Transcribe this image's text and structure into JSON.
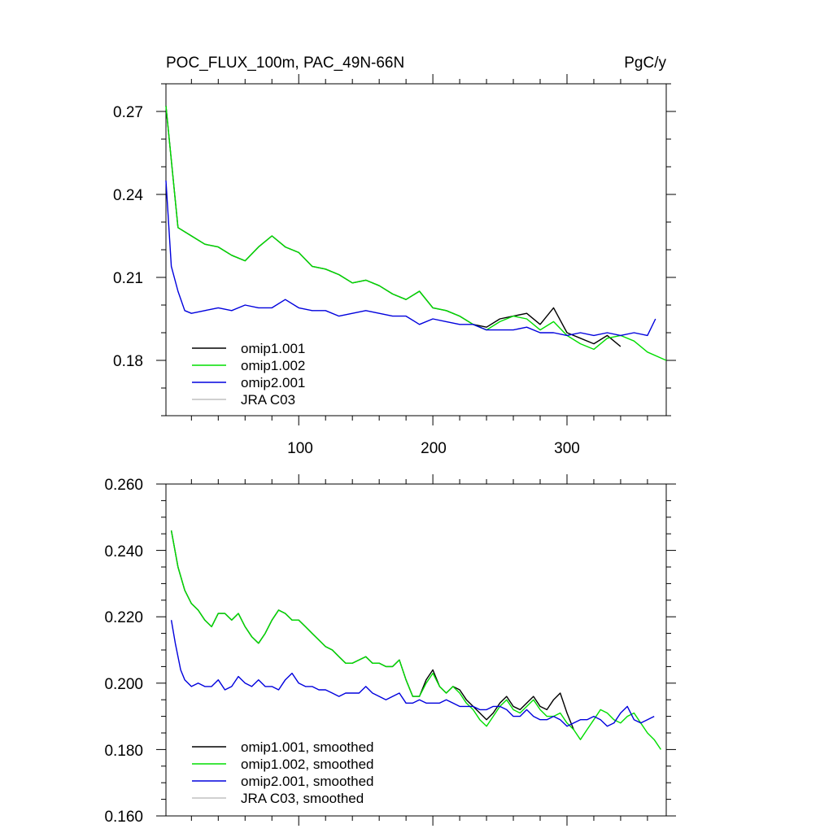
{
  "chart_data": [
    {
      "type": "line",
      "title": "POC_FLUX_100m, PAC_49N-66N",
      "units": "PgC/y",
      "xlim": [
        1,
        374
      ],
      "ylim": [
        0.16,
        0.28
      ],
      "xticks": [
        100,
        200,
        300
      ],
      "yticks": [
        0.18,
        0.21,
        0.24,
        0.27
      ],
      "ytick_labels": [
        "0.18",
        "0.21",
        "0.24",
        "0.27"
      ],
      "xtick_labels": [
        "100",
        "200",
        "300"
      ],
      "grid": false,
      "legend_position": "bottom-left",
      "series": [
        {
          "name": "omip1.001",
          "color": "#000000",
          "x": [
            1,
            10,
            20,
            30,
            40,
            50,
            60,
            70,
            80,
            90,
            100,
            110,
            120,
            130,
            140,
            150,
            160,
            170,
            180,
            190,
            200,
            210,
            220,
            230,
            240,
            250,
            260,
            270,
            280,
            290,
            300,
            310,
            320,
            330,
            340
          ],
          "y": [
            0.272,
            0.228,
            0.225,
            0.222,
            0.221,
            0.218,
            0.216,
            0.221,
            0.225,
            0.221,
            0.219,
            0.214,
            0.213,
            0.211,
            0.208,
            0.209,
            0.207,
            0.204,
            0.202,
            0.205,
            0.199,
            0.198,
            0.196,
            0.193,
            0.192,
            0.195,
            0.196,
            0.197,
            0.193,
            0.199,
            0.19,
            0.188,
            0.186,
            0.189,
            0.185
          ]
        },
        {
          "name": "omip1.002",
          "color": "#00dd00",
          "x": [
            1,
            10,
            20,
            30,
            40,
            50,
            60,
            70,
            80,
            90,
            100,
            110,
            120,
            130,
            140,
            150,
            160,
            170,
            180,
            190,
            200,
            210,
            220,
            230,
            240,
            250,
            260,
            270,
            280,
            290,
            300,
            310,
            320,
            330,
            340,
            350,
            360,
            374
          ],
          "y": [
            0.272,
            0.228,
            0.225,
            0.222,
            0.221,
            0.218,
            0.216,
            0.221,
            0.225,
            0.221,
            0.219,
            0.214,
            0.213,
            0.211,
            0.208,
            0.209,
            0.207,
            0.204,
            0.202,
            0.205,
            0.199,
            0.198,
            0.196,
            0.193,
            0.191,
            0.194,
            0.196,
            0.195,
            0.191,
            0.194,
            0.189,
            0.186,
            0.184,
            0.188,
            0.189,
            0.187,
            0.183,
            0.18
          ]
        },
        {
          "name": "omip2.001",
          "color": "#0000dd",
          "x": [
            1,
            5,
            10,
            15,
            20,
            30,
            40,
            50,
            60,
            70,
            80,
            90,
            100,
            110,
            120,
            130,
            140,
            150,
            160,
            170,
            180,
            190,
            200,
            210,
            220,
            230,
            240,
            250,
            260,
            270,
            280,
            290,
            300,
            310,
            320,
            330,
            340,
            350,
            360,
            366
          ],
          "y": [
            0.245,
            0.214,
            0.205,
            0.198,
            0.197,
            0.198,
            0.199,
            0.198,
            0.2,
            0.199,
            0.199,
            0.202,
            0.199,
            0.198,
            0.198,
            0.196,
            0.197,
            0.198,
            0.197,
            0.196,
            0.196,
            0.193,
            0.195,
            0.194,
            0.193,
            0.193,
            0.191,
            0.191,
            0.191,
            0.192,
            0.19,
            0.19,
            0.189,
            0.19,
            0.189,
            0.19,
            0.189,
            0.19,
            0.189,
            0.195
          ]
        },
        {
          "name": "JRA C03",
          "color": "#c0c0c0",
          "x": [],
          "y": []
        }
      ]
    },
    {
      "type": "line",
      "xlim": [
        1,
        374
      ],
      "ylim": [
        0.16,
        0.26
      ],
      "xticks": [
        100,
        200,
        300
      ],
      "yticks": [
        0.16,
        0.18,
        0.2,
        0.22,
        0.24,
        0.26
      ],
      "ytick_labels": [
        "0.160",
        "0.180",
        "0.200",
        "0.220",
        "0.240",
        "0.260"
      ],
      "grid": false,
      "legend_position": "bottom-left",
      "series": [
        {
          "name": "omip1.001, smoothed",
          "color": "#000000",
          "x": [
            5,
            10,
            15,
            20,
            25,
            30,
            35,
            40,
            45,
            50,
            55,
            60,
            65,
            70,
            75,
            80,
            85,
            90,
            95,
            100,
            105,
            110,
            115,
            120,
            125,
            130,
            135,
            140,
            145,
            150,
            155,
            160,
            165,
            170,
            175,
            180,
            185,
            190,
            195,
            200,
            205,
            210,
            215,
            220,
            225,
            230,
            235,
            240,
            245,
            250,
            255,
            260,
            265,
            270,
            275,
            280,
            285,
            290,
            295,
            300,
            305
          ],
          "y": [
            0.246,
            0.235,
            0.228,
            0.224,
            0.222,
            0.219,
            0.217,
            0.221,
            0.221,
            0.219,
            0.221,
            0.217,
            0.214,
            0.212,
            0.215,
            0.219,
            0.222,
            0.221,
            0.219,
            0.219,
            0.217,
            0.215,
            0.213,
            0.211,
            0.21,
            0.208,
            0.206,
            0.206,
            0.207,
            0.208,
            0.206,
            0.206,
            0.205,
            0.205,
            0.207,
            0.201,
            0.196,
            0.196,
            0.201,
            0.204,
            0.199,
            0.197,
            0.199,
            0.198,
            0.195,
            0.193,
            0.191,
            0.189,
            0.191,
            0.194,
            0.196,
            0.193,
            0.192,
            0.194,
            0.196,
            0.193,
            0.192,
            0.195,
            0.197,
            0.191,
            0.186
          ]
        },
        {
          "name": "omip1.002, smoothed",
          "color": "#00dd00",
          "x": [
            5,
            10,
            15,
            20,
            25,
            30,
            35,
            40,
            45,
            50,
            55,
            60,
            65,
            70,
            75,
            80,
            85,
            90,
            95,
            100,
            105,
            110,
            115,
            120,
            125,
            130,
            135,
            140,
            145,
            150,
            155,
            160,
            165,
            170,
            175,
            180,
            185,
            190,
            195,
            200,
            205,
            210,
            215,
            220,
            225,
            230,
            235,
            240,
            245,
            250,
            255,
            260,
            265,
            270,
            275,
            280,
            285,
            290,
            295,
            300,
            305,
            310,
            315,
            320,
            325,
            330,
            335,
            340,
            345,
            350,
            355,
            360,
            365,
            370
          ],
          "y": [
            0.246,
            0.235,
            0.228,
            0.224,
            0.222,
            0.219,
            0.217,
            0.221,
            0.221,
            0.219,
            0.221,
            0.217,
            0.214,
            0.212,
            0.215,
            0.219,
            0.222,
            0.221,
            0.219,
            0.219,
            0.217,
            0.215,
            0.213,
            0.211,
            0.21,
            0.208,
            0.206,
            0.206,
            0.207,
            0.208,
            0.206,
            0.206,
            0.205,
            0.205,
            0.207,
            0.201,
            0.196,
            0.196,
            0.2,
            0.203,
            0.199,
            0.197,
            0.199,
            0.197,
            0.194,
            0.192,
            0.189,
            0.187,
            0.19,
            0.193,
            0.195,
            0.192,
            0.191,
            0.193,
            0.195,
            0.192,
            0.19,
            0.19,
            0.191,
            0.188,
            0.186,
            0.183,
            0.186,
            0.189,
            0.192,
            0.191,
            0.189,
            0.188,
            0.19,
            0.191,
            0.188,
            0.185,
            0.183,
            0.18
          ]
        },
        {
          "name": "omip2.001, smoothed",
          "color": "#0000dd",
          "x": [
            5,
            8,
            12,
            15,
            20,
            25,
            30,
            35,
            40,
            45,
            50,
            55,
            60,
            65,
            70,
            75,
            80,
            85,
            90,
            95,
            100,
            105,
            110,
            115,
            120,
            125,
            130,
            135,
            140,
            145,
            150,
            155,
            160,
            165,
            170,
            175,
            180,
            185,
            190,
            195,
            200,
            205,
            210,
            215,
            220,
            225,
            230,
            235,
            240,
            245,
            250,
            255,
            260,
            265,
            270,
            275,
            280,
            285,
            290,
            295,
            300,
            305,
            310,
            315,
            320,
            325,
            330,
            335,
            340,
            345,
            350,
            355,
            360,
            365
          ],
          "y": [
            0.219,
            0.212,
            0.204,
            0.201,
            0.199,
            0.2,
            0.199,
            0.199,
            0.201,
            0.198,
            0.199,
            0.202,
            0.2,
            0.199,
            0.201,
            0.199,
            0.199,
            0.198,
            0.201,
            0.203,
            0.2,
            0.199,
            0.199,
            0.198,
            0.198,
            0.197,
            0.196,
            0.197,
            0.197,
            0.197,
            0.199,
            0.197,
            0.196,
            0.195,
            0.196,
            0.197,
            0.194,
            0.194,
            0.195,
            0.194,
            0.194,
            0.194,
            0.195,
            0.194,
            0.193,
            0.193,
            0.193,
            0.192,
            0.192,
            0.193,
            0.193,
            0.192,
            0.19,
            0.19,
            0.192,
            0.19,
            0.189,
            0.189,
            0.19,
            0.189,
            0.187,
            0.188,
            0.189,
            0.189,
            0.19,
            0.189,
            0.187,
            0.188,
            0.191,
            0.193,
            0.189,
            0.188,
            0.189,
            0.19
          ]
        },
        {
          "name": "JRA C03, smoothed",
          "color": "#c0c0c0",
          "x": [],
          "y": []
        }
      ]
    }
  ]
}
